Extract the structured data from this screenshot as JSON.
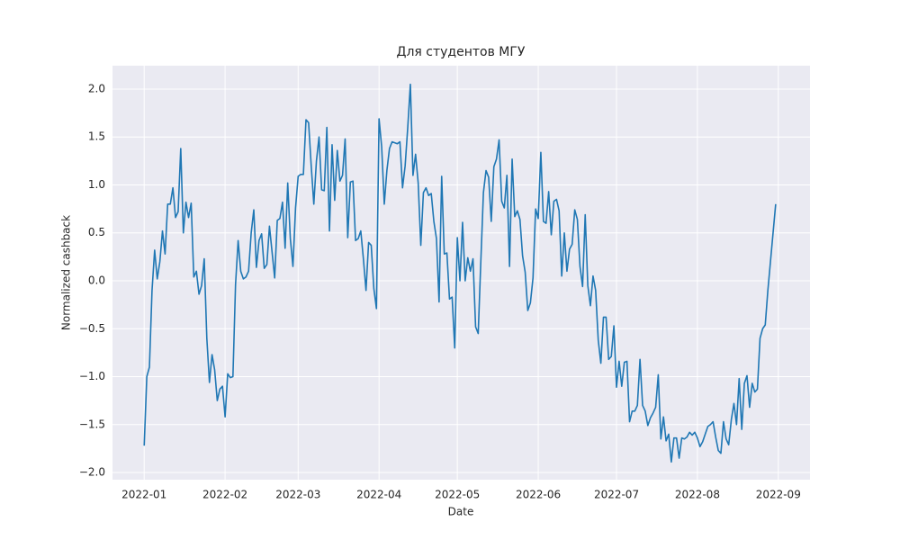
{
  "chart_data": {
    "type": "line",
    "title": "Для студентов МГУ",
    "xlabel": "Date",
    "ylabel": "Normalized cashback",
    "series": [
      {
        "name": "cashback",
        "color": "#1f77b4",
        "values": [
          -1.72,
          -1.0,
          -0.9,
          -0.1,
          0.32,
          0.02,
          0.2,
          0.52,
          0.28,
          0.8,
          0.8,
          0.97,
          0.66,
          0.72,
          1.38,
          0.5,
          0.82,
          0.66,
          0.81,
          0.04,
          0.1,
          -0.14,
          -0.05,
          0.23,
          -0.6,
          -1.06,
          -0.77,
          -0.93,
          -1.25,
          -1.13,
          -1.1,
          -1.42,
          -0.97,
          -1.01,
          -1.0,
          -0.04,
          0.42,
          0.1,
          0.02,
          0.04,
          0.1,
          0.5,
          0.74,
          0.14,
          0.42,
          0.49,
          0.13,
          0.17,
          0.57,
          0.3,
          0.03,
          0.63,
          0.65,
          0.82,
          0.34,
          1.02,
          0.44,
          0.15,
          0.76,
          1.09,
          1.11,
          1.11,
          1.68,
          1.65,
          1.2,
          0.8,
          1.25,
          1.5,
          0.95,
          0.94,
          1.6,
          0.52,
          1.42,
          0.84,
          1.36,
          1.04,
          1.1,
          1.48,
          0.45,
          1.03,
          1.04,
          0.42,
          0.44,
          0.52,
          0.23,
          -0.1,
          0.4,
          0.37,
          -0.08,
          -0.29,
          1.69,
          1.4,
          0.8,
          1.15,
          1.38,
          1.45,
          1.44,
          1.43,
          1.45,
          0.97,
          1.2,
          1.6,
          2.05,
          1.1,
          1.32,
          1.02,
          0.37,
          0.92,
          0.97,
          0.89,
          0.91,
          0.62,
          0.44,
          -0.22,
          1.09,
          0.28,
          0.29,
          -0.19,
          -0.17,
          -0.7,
          0.45,
          0.0,
          0.61,
          0.0,
          0.24,
          0.1,
          0.23,
          -0.48,
          -0.55,
          0.2,
          0.92,
          1.15,
          1.08,
          0.62,
          1.19,
          1.27,
          1.47,
          0.83,
          0.76,
          1.1,
          0.15,
          1.27,
          0.67,
          0.73,
          0.64,
          0.26,
          0.09,
          -0.31,
          -0.23,
          0.03,
          0.75,
          0.65,
          1.34,
          0.62,
          0.6,
          0.93,
          0.48,
          0.83,
          0.85,
          0.73,
          0.05,
          0.5,
          0.1,
          0.33,
          0.38,
          0.74,
          0.64,
          0.15,
          -0.06,
          0.69,
          -0.05,
          -0.26,
          0.05,
          -0.1,
          -0.62,
          -0.86,
          -0.38,
          -0.38,
          -0.82,
          -0.79,
          -0.47,
          -1.11,
          -0.84,
          -1.1,
          -0.85,
          -0.84,
          -1.47,
          -1.36,
          -1.36,
          -1.3,
          -0.82,
          -1.3,
          -1.36,
          -1.51,
          -1.43,
          -1.38,
          -1.32,
          -0.98,
          -1.65,
          -1.42,
          -1.67,
          -1.6,
          -1.89,
          -1.64,
          -1.64,
          -1.85,
          -1.64,
          -1.65,
          -1.63,
          -1.58,
          -1.61,
          -1.58,
          -1.64,
          -1.73,
          -1.68,
          -1.6,
          -1.52,
          -1.5,
          -1.47,
          -1.63,
          -1.77,
          -1.8,
          -1.47,
          -1.65,
          -1.71,
          -1.45,
          -1.28,
          -1.5,
          -1.02,
          -1.55,
          -1.07,
          -0.99,
          -1.32,
          -1.07,
          -1.16,
          -1.13,
          -0.6,
          -0.5,
          -0.46,
          -0.1,
          0.2,
          0.5,
          0.8
        ]
      }
    ],
    "xlim": [
      -12.15,
      255.15
    ],
    "xticks": [
      {
        "value": 0,
        "label": "2022-01"
      },
      {
        "value": 31,
        "label": "2022-02"
      },
      {
        "value": 59,
        "label": "2022-03"
      },
      {
        "value": 90,
        "label": "2022-04"
      },
      {
        "value": 120,
        "label": "2022-05"
      },
      {
        "value": 151,
        "label": "2022-06"
      },
      {
        "value": 181,
        "label": "2022-07"
      },
      {
        "value": 212,
        "label": "2022-08"
      },
      {
        "value": 243,
        "label": "2022-09"
      }
    ],
    "ylim": [
      -2.075,
      2.244
    ],
    "yticks": [
      {
        "value": -2.0,
        "label": "−2.0"
      },
      {
        "value": -1.5,
        "label": "−1.5"
      },
      {
        "value": -1.0,
        "label": "−1.0"
      },
      {
        "value": -0.5,
        "label": "−0.5"
      },
      {
        "value": 0,
        "label": "0.0"
      },
      {
        "value": 0.5,
        "label": "0.5"
      },
      {
        "value": 1.0,
        "label": "1.0"
      },
      {
        "value": 1.5,
        "label": "1.5"
      },
      {
        "value": 2.0,
        "label": "2.0"
      }
    ],
    "grid": true
  }
}
